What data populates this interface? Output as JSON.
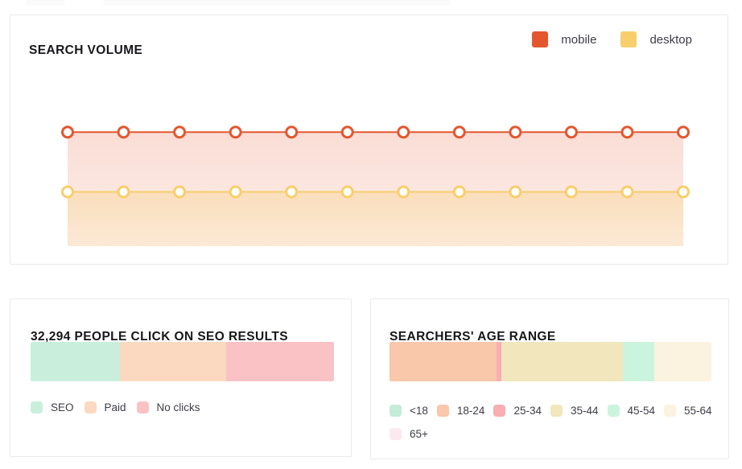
{
  "colors": {
    "card_border": "#e9e9e9",
    "title_text": "#17171c",
    "legend_text": "#3d3d47",
    "mobile_accent": "#e4572e",
    "desktop_accent": "#f8ce6d"
  },
  "search_volume": {
    "title": "SEARCH VOLUME",
    "legend": [
      {
        "label": "mobile",
        "color": "#e4572e"
      },
      {
        "label": "desktop",
        "color": "#f8ce6d"
      }
    ],
    "chart_data": {
      "type": "line",
      "title": "SEARCH VOLUME",
      "points": 12,
      "x_labels": [],
      "y_axis": "hidden",
      "grid": false,
      "legend_position": "top-right",
      "ylim": [
        0,
        100
      ],
      "series": [
        {
          "name": "mobile",
          "color": "#e4572e",
          "fill_opacity_top": 0.2,
          "fill_opacity_bottom": 0.1,
          "values": [
            63,
            63,
            63,
            63,
            63,
            63,
            63,
            63,
            63,
            63,
            63,
            63
          ]
        },
        {
          "name": "desktop",
          "color": "#f8ce6d",
          "fill_opacity_top": 0.32,
          "fill_opacity_bottom": 0.16,
          "values": [
            30,
            30,
            30,
            30,
            30,
            30,
            30,
            30,
            30,
            30,
            30,
            30
          ]
        }
      ]
    }
  },
  "seo_card": {
    "title": "32,294 PEOPLE CLICK ON SEO RESULTS",
    "chart_data": {
      "type": "bar",
      "stacked": true,
      "orientation": "horizontal",
      "title": "32,294 PEOPLE CLICK ON SEO RESULTS",
      "categories": [
        "SEO",
        "Paid",
        "No clicks"
      ],
      "values": [
        29.4,
        35.0,
        35.6
      ],
      "unit": "percent",
      "colors": [
        "#c9efdc",
        "#fbd9c1",
        "#fac2c5"
      ]
    },
    "legend": [
      {
        "label": "SEO",
        "color": "#c9efdc"
      },
      {
        "label": "Paid",
        "color": "#fbd9c1"
      },
      {
        "label": "No clicks",
        "color": "#fac2c5"
      }
    ]
  },
  "age_card": {
    "title": "SEARCHERS' AGE RANGE",
    "chart_data": {
      "type": "bar",
      "stacked": true,
      "orientation": "horizontal",
      "title": "SEARCHERS' AGE RANGE",
      "categories": [
        "<18",
        "18-24",
        "25-34",
        "35-44",
        "45-54",
        "55-64",
        "65+"
      ],
      "values": [
        0,
        33.2,
        1.5,
        37.9,
        9.7,
        17.7,
        0
      ],
      "unit": "percent",
      "colors": [
        "#c4ecd8",
        "#f9c7aa",
        "#f8aeb2",
        "#f1e6bc",
        "#cbf4de",
        "#fbf2df",
        "#fce8ef"
      ]
    },
    "legend": [
      {
        "label": "<18",
        "color": "#c4ecd8"
      },
      {
        "label": "18-24",
        "color": "#f9c7aa"
      },
      {
        "label": "25-34",
        "color": "#f8aeb2"
      },
      {
        "label": "35-44",
        "color": "#f1e6bc"
      },
      {
        "label": "45-54",
        "color": "#cbf4de"
      },
      {
        "label": "55-64",
        "color": "#fbf2df"
      },
      {
        "label": "65+",
        "color": "#fce8ef"
      }
    ]
  }
}
